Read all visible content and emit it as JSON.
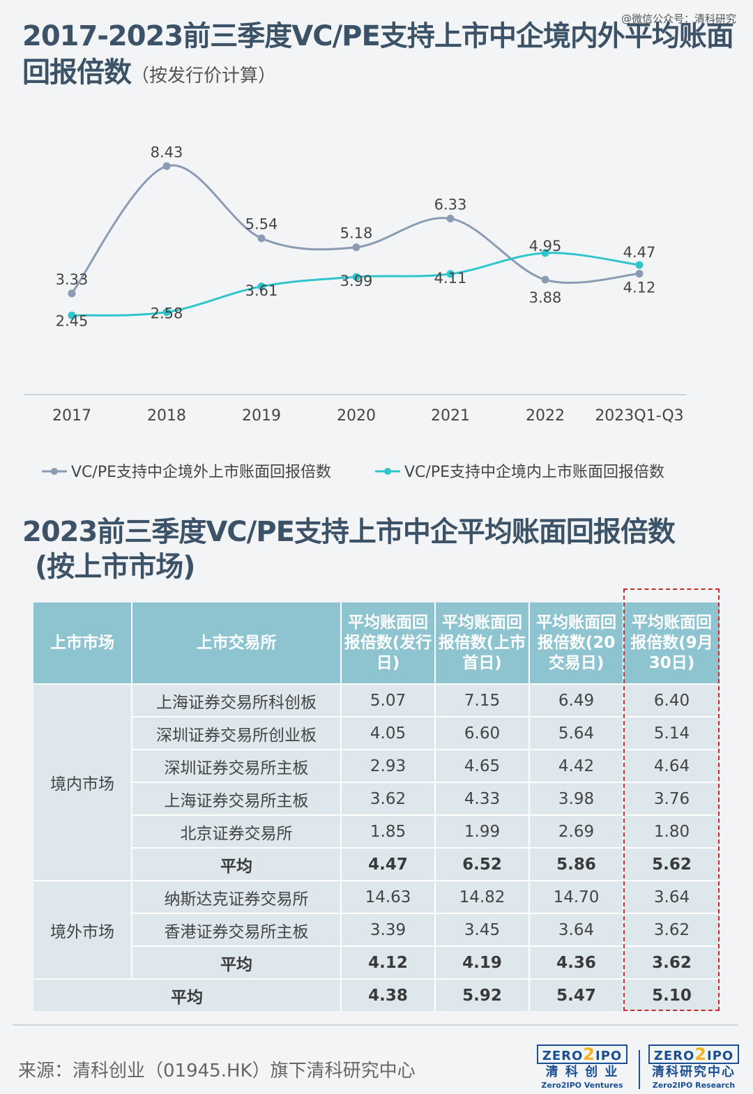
{
  "watermark": "@微信公众号：清科研究",
  "title1": {
    "main": "2017-2023前三季度VC/PE支持上市中企境内外平均账面回报倍数",
    "sub": "（按发行价计算）"
  },
  "chart_data": {
    "type": "line",
    "categories": [
      "2017",
      "2018",
      "2019",
      "2020",
      "2021",
      "2022",
      "2023Q1-Q3"
    ],
    "series": [
      {
        "name": "VC/PE支持中企境外上市账面回报倍数",
        "values": [
          3.33,
          8.43,
          5.54,
          5.18,
          6.33,
          3.88,
          4.12
        ],
        "color": "#8a9bb3"
      },
      {
        "name": "VC/PE支持中企境内上市账面回报倍数",
        "values": [
          2.45,
          2.58,
          3.61,
          3.99,
          4.11,
          4.95,
          4.47
        ],
        "color": "#2ec6cc"
      }
    ],
    "ylim": [
      0,
      9.5
    ],
    "grid": false,
    "legend": "bottom"
  },
  "title2": {
    "line1": "2023前三季度VC/PE支持上市中企平均账面回报倍数",
    "line2": "(按上市市场)"
  },
  "table": {
    "headers": [
      "上市市场",
      "上市交易所",
      "平均账面回报倍数(发行日)",
      "平均账面回报倍数(上市首日)",
      "平均账面回报倍数(20交易日)",
      "平均账面回报倍数(9月30日)"
    ],
    "domestic": {
      "market": "境内市场",
      "rows": [
        {
          "exchange": "上海证券交易所科创板",
          "values": [
            "5.07",
            "7.15",
            "6.49",
            "6.40"
          ]
        },
        {
          "exchange": "深圳证券交易所创业板",
          "values": [
            "4.05",
            "6.60",
            "5.64",
            "5.14"
          ]
        },
        {
          "exchange": "深圳证券交易所主板",
          "values": [
            "2.93",
            "4.65",
            "4.42",
            "4.64"
          ]
        },
        {
          "exchange": "上海证券交易所主板",
          "values": [
            "3.62",
            "4.33",
            "3.98",
            "3.76"
          ]
        },
        {
          "exchange": "北京证券交易所",
          "values": [
            "1.85",
            "1.99",
            "2.69",
            "1.80"
          ]
        }
      ],
      "average": {
        "label": "平均",
        "values": [
          "4.47",
          "6.52",
          "5.86",
          "5.62"
        ]
      }
    },
    "overseas": {
      "market": "境外市场",
      "rows": [
        {
          "exchange": "纳斯达克证券交易所",
          "values": [
            "14.63",
            "14.82",
            "14.70",
            "3.64"
          ]
        },
        {
          "exchange": "香港证券交易所主板",
          "values": [
            "3.39",
            "3.45",
            "3.64",
            "3.62"
          ]
        }
      ],
      "average": {
        "label": "平均",
        "values": [
          "4.12",
          "4.19",
          "4.36",
          "3.62"
        ]
      }
    },
    "overall": {
      "label": "平均",
      "values": [
        "4.38",
        "5.92",
        "5.47",
        "5.10"
      ]
    }
  },
  "footer": {
    "source": "来源：清科创业（01945.HK）旗下清科研究中心",
    "logo1": {
      "top_left": "ZERO",
      "top_mid": "2",
      "top_right": "IPO",
      "cn": "清 科 创 业",
      "en": "Zero2IPO Ventures"
    },
    "logo2": {
      "top_left": "ZERO",
      "top_mid": "2",
      "top_right": "IPO",
      "cn": "清科研究中心",
      "en": "Zero2IPO Research"
    }
  }
}
